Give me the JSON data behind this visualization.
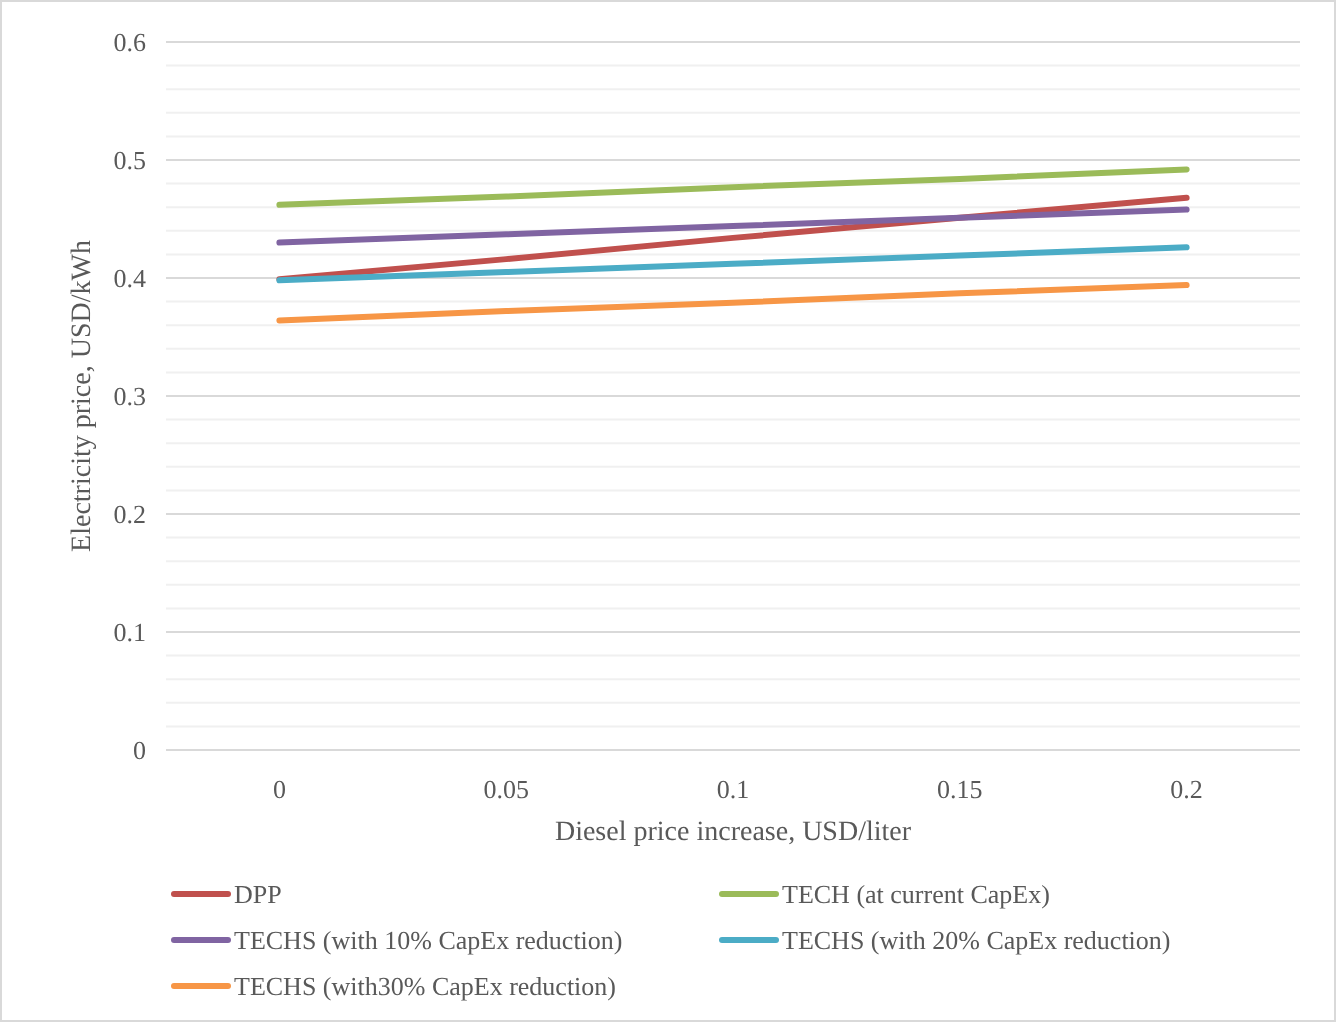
{
  "chart_data": {
    "type": "line",
    "xlabel": "Diesel price increase, USD/liter",
    "ylabel": "Electricity price, USD/kWh",
    "categories": [
      "0",
      "0.05",
      "0.1",
      "0.15",
      "0.2"
    ],
    "series": [
      {
        "name": "DPP",
        "color": "#c0504d",
        "values": [
          0.399,
          0.416,
          0.434,
          0.451,
          0.468
        ]
      },
      {
        "name": "TECH (at current CapEx)",
        "color": "#9bbb59",
        "values": [
          0.462,
          0.469,
          0.477,
          0.484,
          0.492
        ]
      },
      {
        "name": "TECHS (with 10% CapEx reduction)",
        "color": "#8064a2",
        "values": [
          0.43,
          0.437,
          0.444,
          0.451,
          0.458
        ]
      },
      {
        "name": "TECHS (with 20% CapEx reduction)",
        "color": "#4bacc6",
        "values": [
          0.398,
          0.405,
          0.412,
          0.419,
          0.426
        ]
      },
      {
        "name": "TECHS (with30% CapEx reduction)",
        "color": "#f79646",
        "values": [
          0.364,
          0.372,
          0.379,
          0.387,
          0.394
        ]
      }
    ],
    "ylim": [
      0,
      0.6
    ],
    "yticks": [
      0,
      {
        "value": 0.02,
        "label": null
      },
      {
        "value": 0.04,
        "label": null
      },
      {
        "value": 0.06,
        "label": null
      },
      {
        "value": 0.08,
        "label": null
      },
      0.1,
      {
        "value": 0.12,
        "label": null
      },
      {
        "value": 0.14,
        "label": null
      },
      {
        "value": 0.16,
        "label": null
      },
      {
        "value": 0.18,
        "label": null
      },
      0.2,
      {
        "value": 0.22,
        "label": null
      },
      {
        "value": 0.24,
        "label": null
      },
      {
        "value": 0.26,
        "label": null
      },
      {
        "value": 0.28,
        "label": null
      },
      0.3,
      {
        "value": 0.32,
        "label": null
      },
      {
        "value": 0.34,
        "label": null
      },
      {
        "value": 0.36,
        "label": null
      },
      {
        "value": 0.38,
        "label": null
      },
      0.4,
      {
        "value": 0.42,
        "label": null
      },
      {
        "value": 0.44,
        "label": null
      },
      {
        "value": 0.46,
        "label": null
      },
      {
        "value": 0.48,
        "label": null
      },
      0.5,
      {
        "value": 0.52,
        "label": null
      },
      {
        "value": 0.54,
        "label": null
      },
      {
        "value": 0.56,
        "label": null
      },
      {
        "value": 0.58,
        "label": null
      },
      0.6
    ],
    "grid": "y",
    "legend": "bottom",
    "marker": "none",
    "line_style": "solid"
  }
}
